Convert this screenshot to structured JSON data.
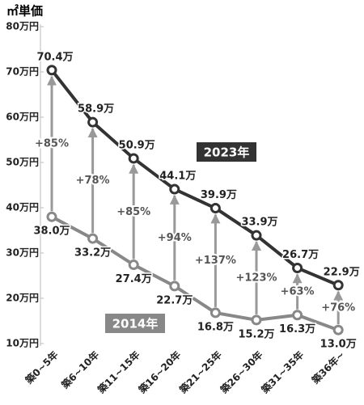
{
  "chart_data": {
    "type": "line",
    "y_label": "㎡単価",
    "categories": [
      "築0~5年",
      "築6~10年",
      "築11~15年",
      "築16~20年",
      "築21~25年",
      "築26~30年",
      "築31~35年",
      "築36年~"
    ],
    "series": [
      {
        "name": "2023年",
        "color": "#333333",
        "values": [
          70.4,
          58.9,
          50.9,
          44.1,
          39.9,
          33.9,
          26.7,
          22.9
        ],
        "value_labels": [
          "70.4万",
          "58.9万",
          "50.9万",
          "44.1万",
          "39.9万",
          "33.9万",
          "26.7万",
          "22.9万"
        ]
      },
      {
        "name": "2014年",
        "color": "#888888",
        "values": [
          38.0,
          33.2,
          27.4,
          22.7,
          16.8,
          15.2,
          16.3,
          13.0
        ],
        "value_labels": [
          "38.0万",
          "33.2万",
          "27.4万",
          "22.7万",
          "16.8万",
          "15.2万",
          "16.3万",
          "13.0万"
        ]
      }
    ],
    "growth_labels": [
      "+85%",
      "+78%",
      "+85%",
      "+94%",
      "+137%",
      "+123%",
      "+63%",
      "+76%"
    ],
    "ylim": [
      10,
      80
    ],
    "yticks": [
      {
        "value": 10,
        "label": "10万円"
      },
      {
        "value": 20,
        "label": "20万円"
      },
      {
        "value": 30,
        "label": "30万円"
      },
      {
        "value": 40,
        "label": "40万円"
      },
      {
        "value": 50,
        "label": "50万円"
      },
      {
        "value": 60,
        "label": "60万円"
      },
      {
        "value": 70,
        "label": "70万円"
      },
      {
        "value": 80,
        "label": "80万円"
      }
    ],
    "grid": false
  }
}
